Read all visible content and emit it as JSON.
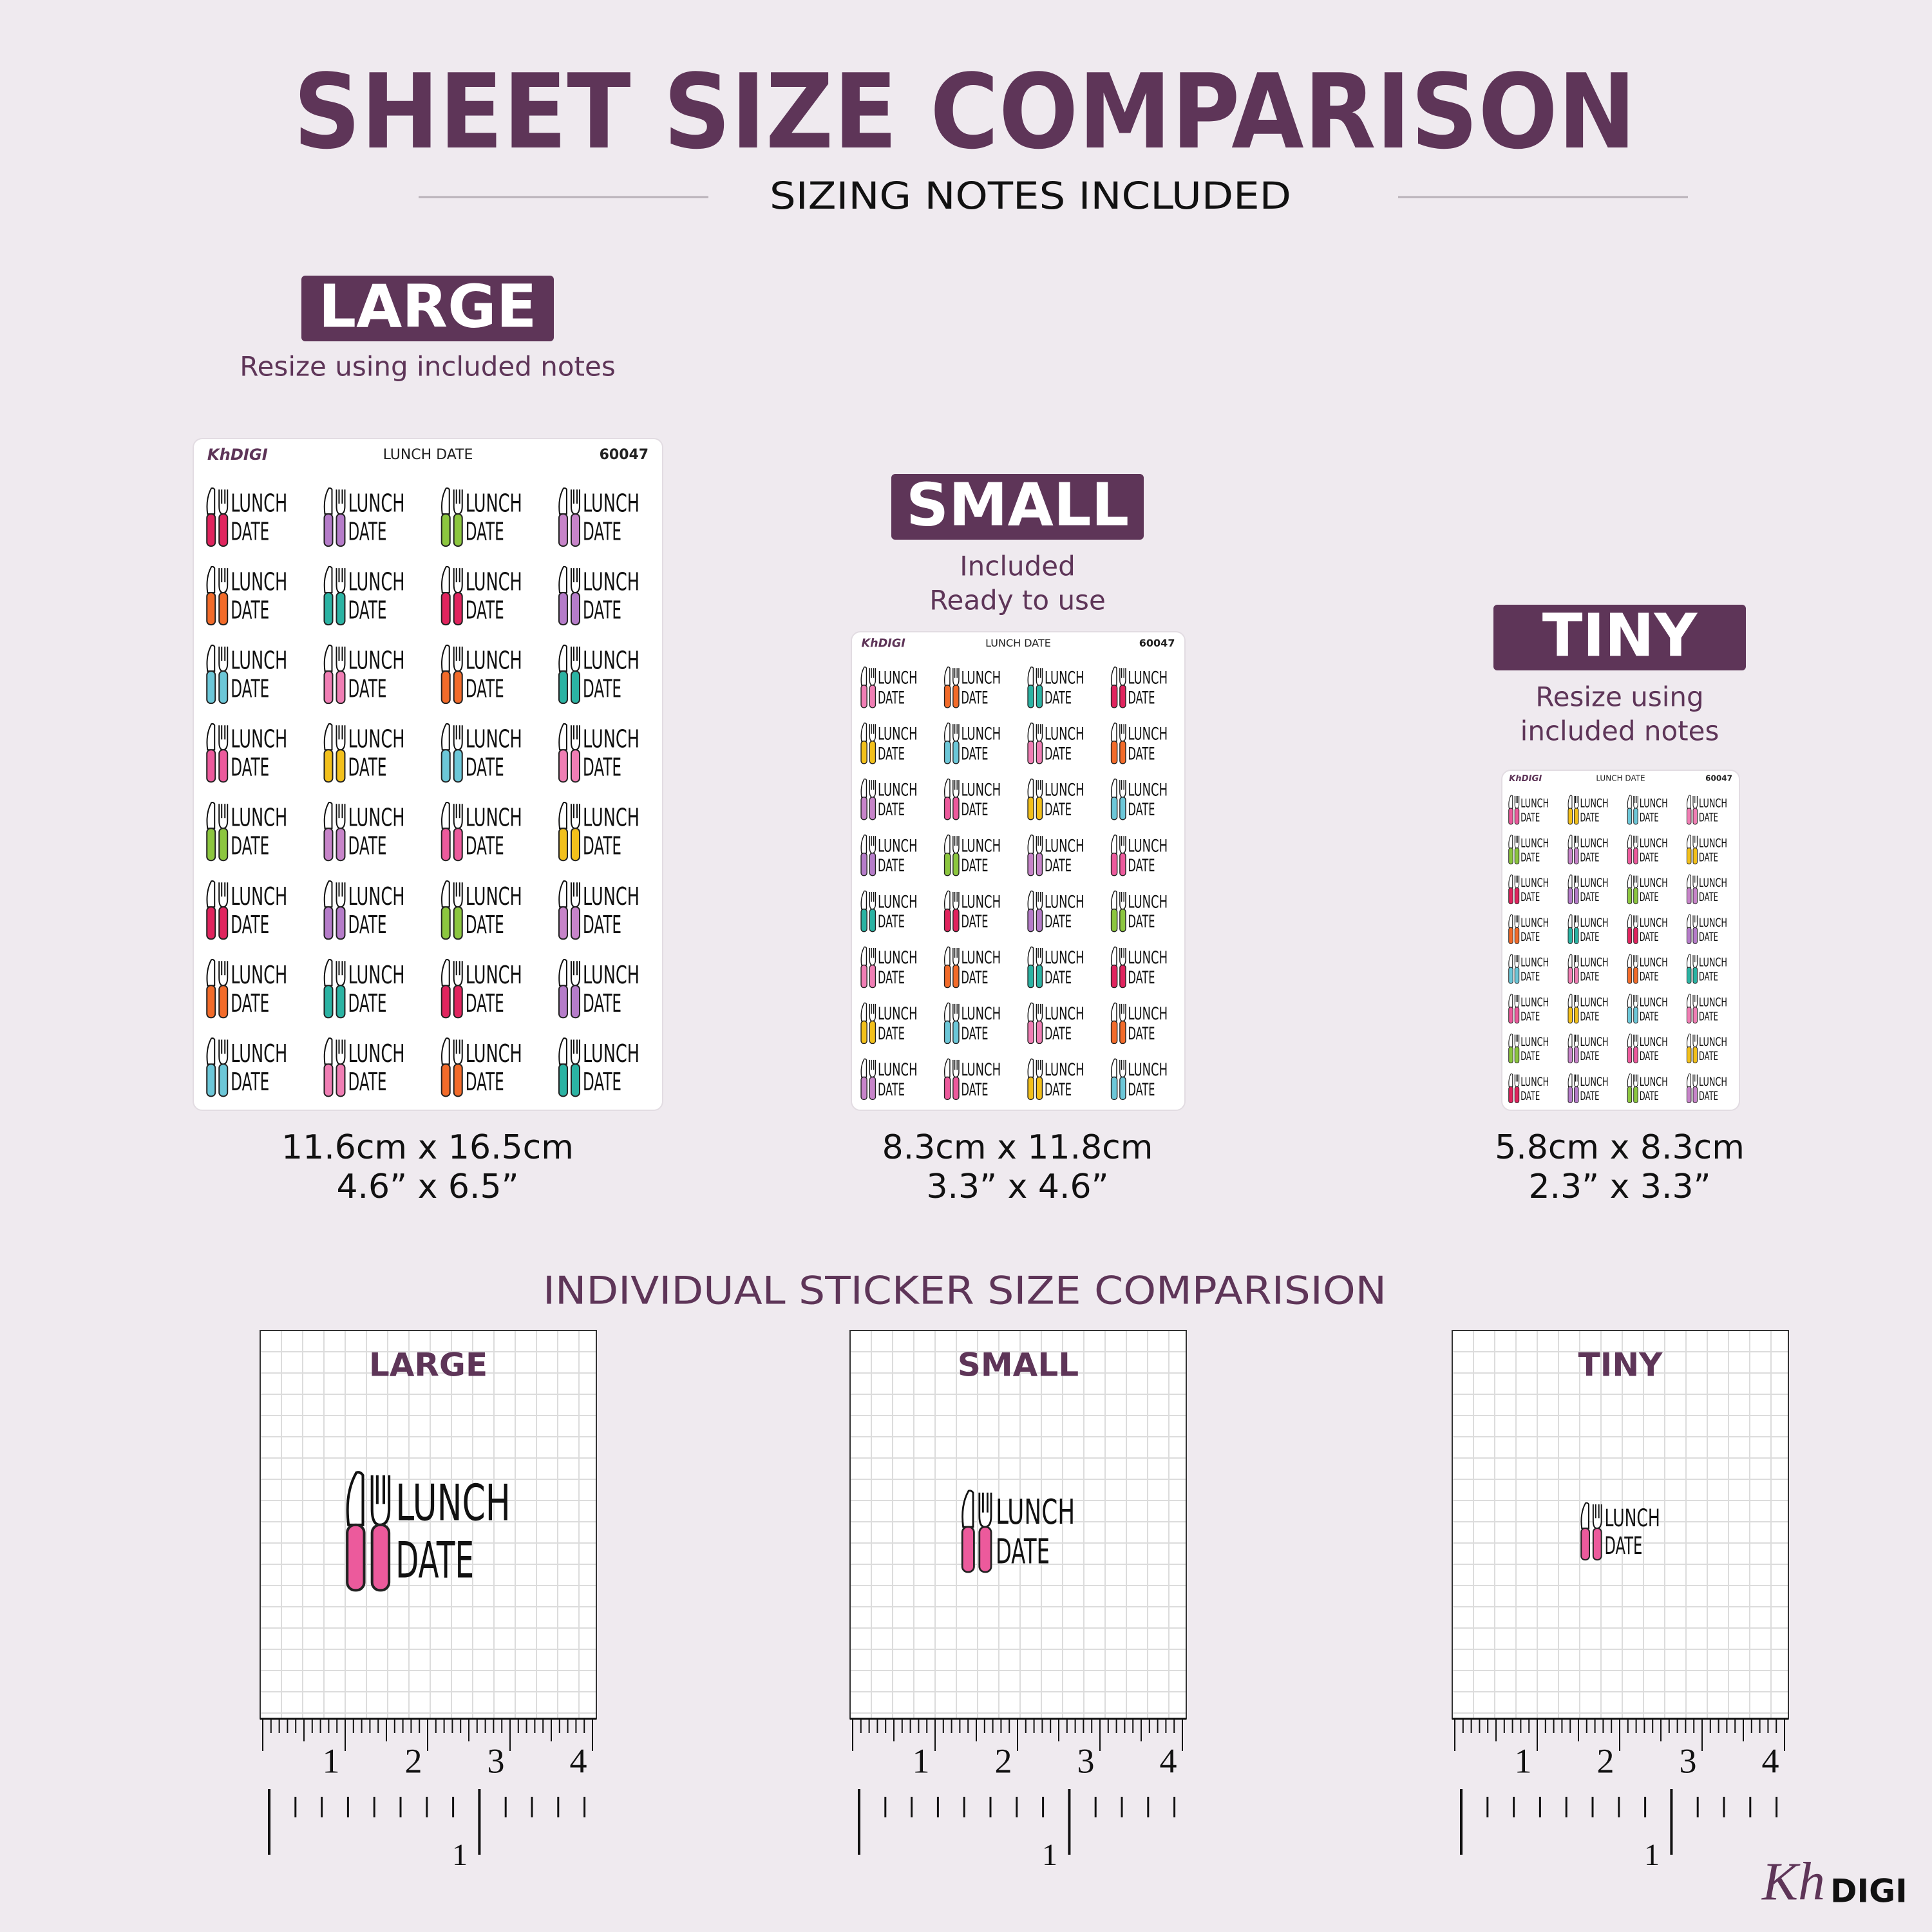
{
  "header": {
    "title": "SHEET SIZE COMPARISON",
    "subtitle": "SIZING NOTES INCLUDED"
  },
  "sheet_header": {
    "brand": "KhDIGI",
    "title": "LUNCH DATE",
    "code": "60047"
  },
  "sticker": {
    "line1": "LUNCH",
    "line2": "DATE"
  },
  "sheets": [
    {
      "label": "LARGE",
      "notes": [
        "Resize using included notes"
      ],
      "metric": "11.6cm x 16.5cm",
      "imperial": "4.6” x 6.5”"
    },
    {
      "label": "SMALL",
      "notes": [
        "Included",
        "Ready to use"
      ],
      "metric": "8.3cm x 11.8cm",
      "imperial": "3.3” x 4.6”"
    },
    {
      "label": "TINY",
      "notes": [
        "Resize using",
        "included notes"
      ],
      "metric": "5.8cm x 8.3cm",
      "imperial": "2.3” x 3.3”"
    }
  ],
  "individual": {
    "title": "INDIVIDUAL STICKER SIZE COMPARISION",
    "panels": [
      "LARGE",
      "SMALL",
      "TINY"
    ]
  },
  "ruler": {
    "cm_labels": [
      "1",
      "2",
      "3",
      "4"
    ],
    "inch_label": "1"
  },
  "logo": {
    "kh": "Kh",
    "digi": "DIGI"
  }
}
